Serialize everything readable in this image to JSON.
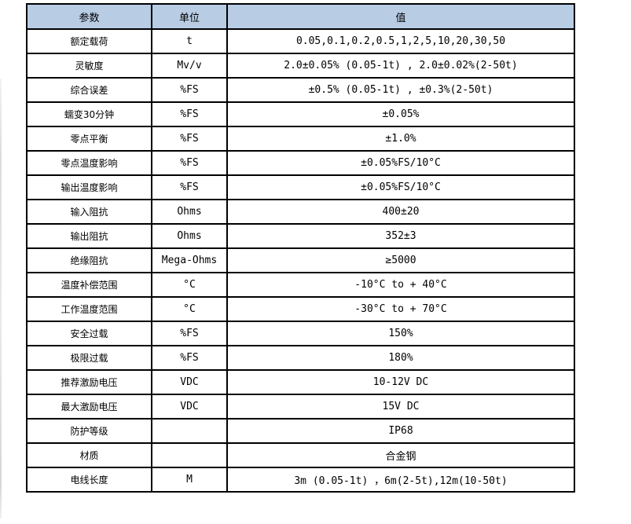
{
  "header": {
    "param": "参数",
    "unit": "单位",
    "value": "值"
  },
  "rows": [
    {
      "param": "额定载荷",
      "unit": "t",
      "value": "0.05,0.1,0.2,0.5,1,2,5,10,20,30,50"
    },
    {
      "param": "灵敏度",
      "unit": "Mv/v",
      "value": "2.0±0.05% (0.05-1t) , 2.0±0.02%(2-50t)"
    },
    {
      "param": "综合误差",
      "unit": "%FS",
      "value": "±0.5% (0.05-1t) , ±0.3%(2-50t)"
    },
    {
      "param": "蠕变30分钟",
      "unit": "%FS",
      "value": "±0.05%"
    },
    {
      "param": "零点平衡",
      "unit": "%FS",
      "value": "±1.0%"
    },
    {
      "param": "零点温度影响",
      "unit": "%FS",
      "value": "±0.05%FS/10°C"
    },
    {
      "param": "输出温度影响",
      "unit": "%FS",
      "value": "±0.05%FS/10°C"
    },
    {
      "param": "输入阻抗",
      "unit": "Ohms",
      "value": "400±20"
    },
    {
      "param": "输出阻抗",
      "unit": "Ohms",
      "value": "352±3"
    },
    {
      "param": "绝缘阻抗",
      "unit": "Mega-Ohms",
      "value": "≥5000"
    },
    {
      "param": "温度补偿范围",
      "unit": "°C",
      "value": "-10°C to + 40°C"
    },
    {
      "param": "工作温度范围",
      "unit": "°C",
      "value": "-30°C to + 70°C"
    },
    {
      "param": "安全过载",
      "unit": "%FS",
      "value": "150%"
    },
    {
      "param": "极限过载",
      "unit": "%FS",
      "value": "180%"
    },
    {
      "param": "推荐激励电压",
      "unit": "VDC",
      "value": "10-12V DC"
    },
    {
      "param": "最大激励电压",
      "unit": "VDC",
      "value": "15V DC"
    },
    {
      "param": "防护等级",
      "unit": "",
      "value": "IP68"
    },
    {
      "param": "材质",
      "unit": "",
      "value": "合金钢"
    },
    {
      "param": "电线长度",
      "unit": "M",
      "value": "3m (0.05-1t) ，6m(2-5t),12m(10-50t)"
    }
  ],
  "colors": {
    "header_bg": "#b8cce4",
    "border": "#000000",
    "text": "#000000"
  }
}
